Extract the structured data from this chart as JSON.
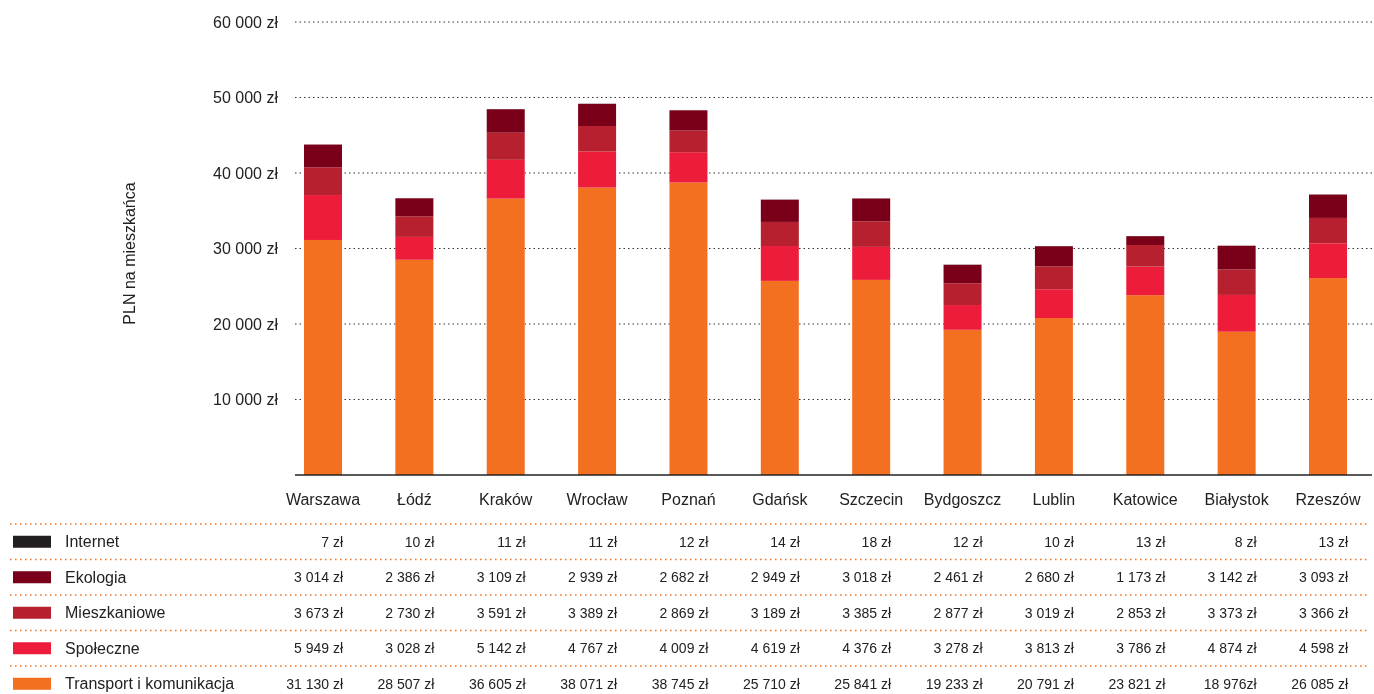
{
  "chart_data": {
    "type": "bar",
    "stacked": true,
    "ylabel": "PLN na mieszkańca",
    "categories": [
      "Warszawa",
      "Łódź",
      "Kraków",
      "Wrocław",
      "Poznań",
      "Gdańsk",
      "Szczecin",
      "Bydgoszcz",
      "Lublin",
      "Katowice",
      "Białystok",
      "Rzeszów"
    ],
    "ylim": [
      0,
      60000
    ],
    "yticks": [
      {
        "value": 10000,
        "label": "10 000 zł"
      },
      {
        "value": 20000,
        "label": "20 000 zł"
      },
      {
        "value": 30000,
        "label": "30 000 zł"
      },
      {
        "value": 40000,
        "label": "40 000 zł"
      },
      {
        "value": 50000,
        "label": "50 000 zł"
      },
      {
        "value": 60000,
        "label": "60 000 zł"
      }
    ],
    "grid": "y",
    "legend": "bottom",
    "series": [
      {
        "name": "Transport i komunikacja",
        "color": "#f37021",
        "values": [
          31130,
          28507,
          36605,
          38071,
          38745,
          25710,
          25841,
          19233,
          20791,
          23821,
          18976,
          26085
        ],
        "value_labels": [
          "31 130 zł",
          "28 507 zł",
          "36 605 zł",
          "38 071 zł",
          "38 745 zł",
          "25 710 zł",
          "25 841 zł",
          "19 233 zł",
          "20 791 zł",
          "23 821 zł",
          "18 976zł",
          "26 085 zł"
        ]
      },
      {
        "name": "Społeczne",
        "color": "#ed1c3a",
        "values": [
          5949,
          3028,
          5142,
          4767,
          4009,
          4619,
          4376,
          3278,
          3813,
          3786,
          4874,
          4598
        ],
        "value_labels": [
          "5 949 zł",
          "3 028 zł",
          "5 142 zł",
          "4 767 zł",
          "4 009 zł",
          "4 619 zł",
          "4 376 zł",
          "3 278 zł",
          "3 813 zł",
          "3 786 zł",
          "4 874 zł",
          "4 598 zł"
        ]
      },
      {
        "name": "Mieszkaniowe",
        "color": "#b7202e",
        "values": [
          3673,
          2730,
          3591,
          3389,
          2869,
          3189,
          3385,
          2877,
          3019,
          2853,
          3373,
          3366
        ],
        "value_labels": [
          "3 673 zł",
          "2 730 zł",
          "3 591 zł",
          "3 389 zł",
          "2 869 zł",
          "3 189 zł",
          "3 385 zł",
          "2 877 zł",
          "3 019 zł",
          "2 853 zł",
          "3 373 zł",
          "3 366 zł"
        ]
      },
      {
        "name": "Ekologia",
        "color": "#7a0019",
        "values": [
          3014,
          2386,
          3109,
          2939,
          2682,
          2949,
          3018,
          2461,
          2680,
          1173,
          3142,
          3093
        ],
        "value_labels": [
          "3 014 zł",
          "2 386 zł",
          "3 109 zł",
          "2 939 zł",
          "2 682 zł",
          "2 949 zł",
          "3 018 zł",
          "2 461 zł",
          "2 680 zł",
          "1 173 zł",
          "3 142 zł",
          "3 093 zł"
        ]
      },
      {
        "name": "Internet",
        "color": "#231f20",
        "values": [
          7,
          10,
          11,
          11,
          12,
          14,
          18,
          12,
          10,
          13,
          8,
          13
        ],
        "value_labels": [
          "7 zł",
          "10 zł",
          "11 zł",
          "11 zł",
          "12 zł",
          "14 zł",
          "18 zł",
          "12 zł",
          "10 zł",
          "13 zł",
          "8 zł",
          "13 zł"
        ]
      }
    ]
  }
}
